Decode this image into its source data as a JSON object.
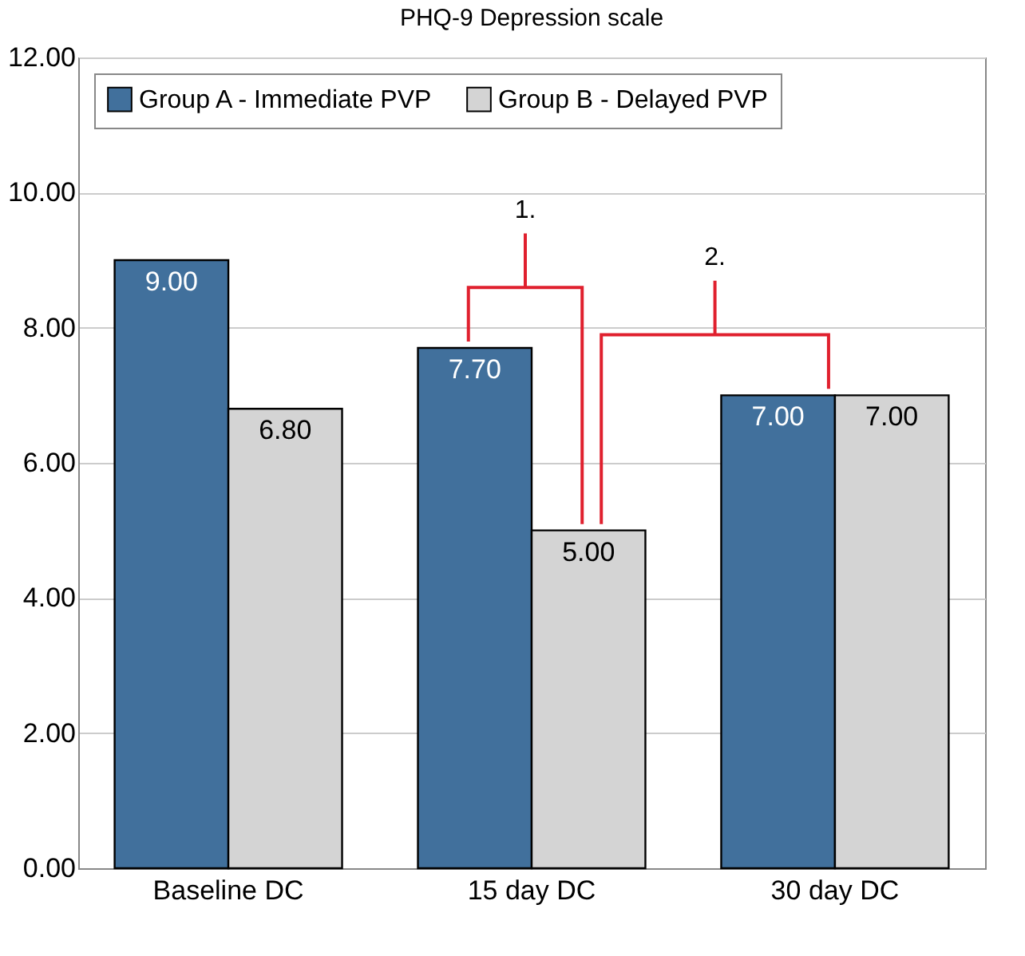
{
  "chart_data": {
    "type": "bar",
    "title": "PHQ-9 Depression scale",
    "categories": [
      "Baseline DC",
      "15 day DC",
      "30 day DC"
    ],
    "series": [
      {
        "name": "Group A - Immediate PVP",
        "color": "#41709c",
        "values": [
          9.0,
          7.7,
          7.0
        ],
        "value_labels": [
          "9.00",
          "7.70",
          "7.00"
        ]
      },
      {
        "name": "Group B - Delayed PVP",
        "color": "#d4d4d4",
        "values": [
          6.8,
          5.0,
          7.0
        ],
        "value_labels": [
          "6.80",
          "5.00",
          "7.00"
        ]
      }
    ],
    "ylim": [
      0,
      12
    ],
    "yticks": [
      {
        "value": 0,
        "label": "0.00"
      },
      {
        "value": 2,
        "label": "2.00"
      },
      {
        "value": 4,
        "label": "4.00"
      },
      {
        "value": 6,
        "label": "6.00"
      },
      {
        "value": 8,
        "label": "8.00"
      },
      {
        "value": 10,
        "label": "10.00"
      },
      {
        "value": 12,
        "label": "12.00"
      }
    ],
    "grid": "y",
    "legend": "top left",
    "annotations": [
      "1.",
      "2."
    ]
  }
}
